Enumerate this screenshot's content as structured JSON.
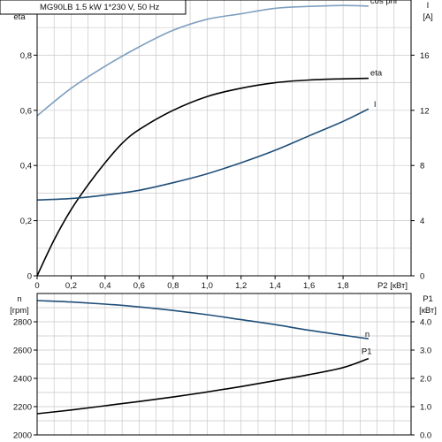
{
  "title": "MG90LB   1.5 kW   1*230 V, 50 Hz",
  "colors": {
    "cosphi": "#7f9fbf",
    "eta": "#000000",
    "current": "#1f4e79",
    "speed": "#1f4e79",
    "power": "#000000",
    "grid": "#c8c8c8",
    "frame": "#000000"
  },
  "chart_data": [
    {
      "type": "line",
      "grid": true,
      "xlabel": "P2 [кВт]",
      "xlim": [
        0,
        2.2
      ],
      "x_ticks": [
        "0",
        "0,2",
        "0,4",
        "0,6",
        "0,8",
        "1,0",
        "1,2",
        "1,4",
        "1,6",
        "1,8"
      ],
      "y_left": {
        "label_lines": [
          "cos phi",
          "eta"
        ],
        "ylim": [
          0,
          1.0
        ],
        "ticks": [
          "0",
          "0,2",
          "0,4",
          "0,6",
          "0,8"
        ]
      },
      "y_right": {
        "label_lines": [
          "I",
          "[A]"
        ],
        "ylim": [
          0,
          20
        ],
        "ticks": [
          "0",
          "4",
          "8",
          "12",
          "16"
        ]
      },
      "series": [
        {
          "name": "cos phi",
          "axis": "left",
          "x": [
            0,
            0.2,
            0.4,
            0.6,
            0.8,
            1.0,
            1.2,
            1.4,
            1.6,
            1.8,
            1.95
          ],
          "y": [
            0.58,
            0.68,
            0.76,
            0.83,
            0.89,
            0.93,
            0.95,
            0.97,
            0.977,
            0.98,
            0.978
          ]
        },
        {
          "name": "eta",
          "axis": "left",
          "x": [
            0,
            0.1,
            0.2,
            0.3,
            0.4,
            0.5,
            0.6,
            0.8,
            1.0,
            1.2,
            1.4,
            1.6,
            1.8,
            1.95
          ],
          "y": [
            0,
            0.13,
            0.24,
            0.33,
            0.41,
            0.48,
            0.53,
            0.6,
            0.65,
            0.68,
            0.7,
            0.71,
            0.714,
            0.716
          ]
        },
        {
          "name": "I",
          "axis": "right",
          "x": [
            0,
            0.2,
            0.4,
            0.6,
            0.8,
            1.0,
            1.2,
            1.4,
            1.6,
            1.8,
            1.95
          ],
          "y": [
            5.5,
            5.6,
            5.85,
            6.2,
            6.75,
            7.4,
            8.2,
            9.1,
            10.15,
            11.2,
            12.1
          ]
        }
      ]
    },
    {
      "type": "line",
      "grid": true,
      "xlim": [
        0,
        2.2
      ],
      "y_left": {
        "label_lines": [
          "n",
          "[rpm]"
        ],
        "ylim": [
          2000,
          3000
        ],
        "ticks": [
          "2000",
          "2200",
          "2400",
          "2600",
          "2800"
        ]
      },
      "y_right": {
        "label_lines": [
          "P1",
          "[кВт]"
        ],
        "ylim": [
          0,
          5.0
        ],
        "ticks": [
          "0.0",
          "1.0",
          "2.0",
          "3.0",
          "4.0"
        ]
      },
      "series": [
        {
          "name": "n",
          "axis": "left",
          "x": [
            0,
            0.2,
            0.4,
            0.6,
            0.8,
            1.0,
            1.2,
            1.4,
            1.6,
            1.8,
            1.95
          ],
          "y": [
            2950,
            2940,
            2925,
            2905,
            2880,
            2850,
            2815,
            2780,
            2740,
            2705,
            2680
          ]
        },
        {
          "name": "P1",
          "axis": "right",
          "x": [
            0,
            0.2,
            0.4,
            0.6,
            0.8,
            1.0,
            1.2,
            1.4,
            1.6,
            1.8,
            1.95
          ],
          "y": [
            0.75,
            0.88,
            1.03,
            1.18,
            1.34,
            1.52,
            1.71,
            1.92,
            2.13,
            2.38,
            2.7
          ]
        }
      ]
    }
  ]
}
